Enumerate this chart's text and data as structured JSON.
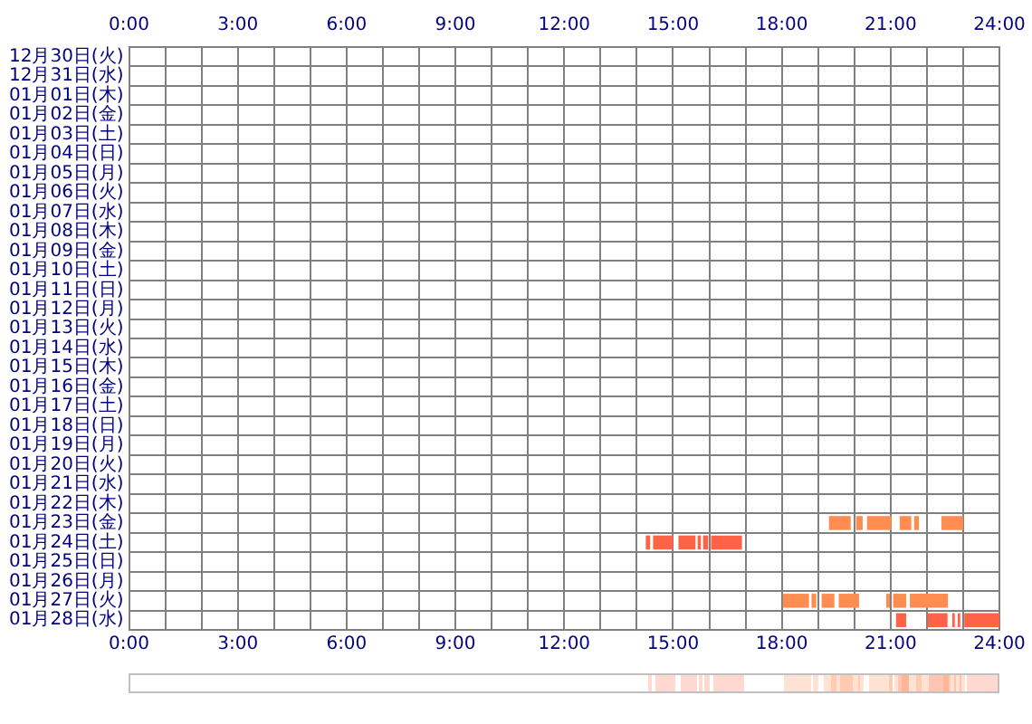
{
  "chart_data": {
    "type": "bar",
    "orientation": "horizontal",
    "grid": true,
    "legend": false,
    "categories": [
      "12月30日(火)",
      "12月31日(水)",
      "01月01日(木)",
      "01月02日(金)",
      "01月03日(土)",
      "01月04日(日)",
      "01月05日(月)",
      "01月06日(火)",
      "01月07日(水)",
      "01月08日(木)",
      "01月09日(金)",
      "01月10日(土)",
      "01月11日(日)",
      "01月12日(月)",
      "01月13日(火)",
      "01月14日(水)",
      "01月15日(木)",
      "01月16日(金)",
      "01月17日(土)",
      "01月18日(日)",
      "01月19日(月)",
      "01月20日(火)",
      "01月21日(水)",
      "01月22日(木)",
      "01月23日(金)",
      "01月24日(土)",
      "01月25日(日)",
      "01月26日(月)",
      "01月27日(火)",
      "01月28日(水)"
    ],
    "xlim": [
      0,
      24
    ],
    "xticks": [
      {
        "value": 0,
        "label": "0:00"
      },
      {
        "value": 1,
        "label": null
      },
      {
        "value": 2,
        "label": null
      },
      {
        "value": 3,
        "label": "3:00"
      },
      {
        "value": 4,
        "label": null
      },
      {
        "value": 5,
        "label": null
      },
      {
        "value": 6,
        "label": "6:00"
      },
      {
        "value": 7,
        "label": null
      },
      {
        "value": 8,
        "label": null
      },
      {
        "value": 9,
        "label": "9:00"
      },
      {
        "value": 10,
        "label": null
      },
      {
        "value": 11,
        "label": null
      },
      {
        "value": 12,
        "label": "12:00"
      },
      {
        "value": 13,
        "label": null
      },
      {
        "value": 14,
        "label": null
      },
      {
        "value": 15,
        "label": "15:00"
      },
      {
        "value": 16,
        "label": null
      },
      {
        "value": 17,
        "label": null
      },
      {
        "value": 18,
        "label": "18:00"
      },
      {
        "value": 19,
        "label": null
      },
      {
        "value": 20,
        "label": null
      },
      {
        "value": 21,
        "label": "21:00"
      },
      {
        "value": 22,
        "label": null
      },
      {
        "value": 23,
        "label": null
      },
      {
        "value": 24,
        "label": "24:00"
      }
    ],
    "x2lim": [
      0,
      24
    ],
    "x2ticks": [
      {
        "value": 0,
        "label": "0:00"
      },
      {
        "value": 3,
        "label": "3:00"
      },
      {
        "value": 6,
        "label": "6:00"
      },
      {
        "value": 9,
        "label": "9:00"
      },
      {
        "value": 12,
        "label": "12:00"
      },
      {
        "value": 15,
        "label": "15:00"
      },
      {
        "value": 18,
        "label": "18:00"
      },
      {
        "value": 21,
        "label": "21:00"
      },
      {
        "value": 24,
        "label": "24:00"
      }
    ],
    "series": [
      {
        "base": [
          null,
          null,
          null,
          null,
          null,
          null,
          null,
          null,
          null,
          null,
          null,
          null,
          null,
          null,
          null,
          null,
          null,
          null,
          null,
          null,
          null,
          null,
          null,
          null,
          19.3,
          14.25,
          null,
          null,
          18.03,
          21.15
        ],
        "values": [
          null,
          null,
          null,
          null,
          null,
          null,
          null,
          null,
          null,
          null,
          null,
          null,
          null,
          null,
          null,
          null,
          null,
          null,
          null,
          null,
          null,
          null,
          null,
          null,
          0.6,
          0.12,
          null,
          null,
          0.72,
          0.28
        ],
        "colors": [
          null,
          null,
          null,
          null,
          null,
          null,
          null,
          null,
          null,
          null,
          null,
          null,
          null,
          null,
          null,
          null,
          null,
          null,
          null,
          null,
          null,
          null,
          null,
          null,
          "#ff8c50",
          "#ff6347",
          null,
          null,
          "#ff8c50",
          "#ff6347"
        ]
      },
      {
        "base": [
          null,
          null,
          null,
          null,
          null,
          null,
          null,
          null,
          null,
          null,
          null,
          null,
          null,
          null,
          null,
          null,
          null,
          null,
          null,
          null,
          null,
          null,
          null,
          null,
          20.05,
          14.45,
          null,
          null,
          18.82,
          22.02
        ],
        "values": [
          null,
          null,
          null,
          null,
          null,
          null,
          null,
          null,
          null,
          null,
          null,
          null,
          null,
          null,
          null,
          null,
          null,
          null,
          null,
          null,
          null,
          null,
          null,
          null,
          0.18,
          0.55,
          null,
          null,
          0.13,
          0.55
        ],
        "colors": [
          null,
          null,
          null,
          null,
          null,
          null,
          null,
          null,
          null,
          null,
          null,
          null,
          null,
          null,
          null,
          null,
          null,
          null,
          null,
          null,
          null,
          null,
          null,
          null,
          "#ff8c50",
          "#ff6347",
          null,
          null,
          "#ff8c50",
          "#ff6347"
        ]
      },
      {
        "base": [
          null,
          null,
          null,
          null,
          null,
          null,
          null,
          null,
          null,
          null,
          null,
          null,
          null,
          null,
          null,
          null,
          null,
          null,
          null,
          null,
          null,
          null,
          null,
          null,
          20.35,
          15.15,
          null,
          null,
          19.1,
          22.7
        ],
        "values": [
          null,
          null,
          null,
          null,
          null,
          null,
          null,
          null,
          null,
          null,
          null,
          null,
          null,
          null,
          null,
          null,
          null,
          null,
          null,
          null,
          null,
          null,
          null,
          null,
          0.67,
          0.47,
          null,
          null,
          0.35,
          0.07
        ],
        "colors": [
          null,
          null,
          null,
          null,
          null,
          null,
          null,
          null,
          null,
          null,
          null,
          null,
          null,
          null,
          null,
          null,
          null,
          null,
          null,
          null,
          null,
          null,
          null,
          null,
          "#ff8c50",
          "#ff6347",
          null,
          null,
          "#ff8c50",
          "#ff6347"
        ]
      },
      {
        "base": [
          null,
          null,
          null,
          null,
          null,
          null,
          null,
          null,
          null,
          null,
          null,
          null,
          null,
          null,
          null,
          null,
          null,
          null,
          null,
          null,
          null,
          null,
          null,
          null,
          21.25,
          15.68,
          null,
          null,
          19.57,
          22.85
        ],
        "values": [
          null,
          null,
          null,
          null,
          null,
          null,
          null,
          null,
          null,
          null,
          null,
          null,
          null,
          null,
          null,
          null,
          null,
          null,
          null,
          null,
          null,
          null,
          null,
          null,
          0.32,
          0.09,
          null,
          null,
          0.56,
          0.07
        ],
        "colors": [
          null,
          null,
          null,
          null,
          null,
          null,
          null,
          null,
          null,
          null,
          null,
          null,
          null,
          null,
          null,
          null,
          null,
          null,
          null,
          null,
          null,
          null,
          null,
          null,
          "#ff8c50",
          "#ff6347",
          null,
          null,
          "#ff8c50",
          "#ff6347"
        ]
      },
      {
        "base": [
          null,
          null,
          null,
          null,
          null,
          null,
          null,
          null,
          null,
          null,
          null,
          null,
          null,
          null,
          null,
          null,
          null,
          null,
          null,
          null,
          null,
          null,
          null,
          null,
          21.65,
          15.83,
          null,
          null,
          20.88,
          23.03
        ],
        "values": [
          null,
          null,
          null,
          null,
          null,
          null,
          null,
          null,
          null,
          null,
          null,
          null,
          null,
          null,
          null,
          null,
          null,
          null,
          null,
          null,
          null,
          null,
          null,
          null,
          0.13,
          0.14,
          null,
          null,
          0.1,
          0.97
        ],
        "colors": [
          null,
          null,
          null,
          null,
          null,
          null,
          null,
          null,
          null,
          null,
          null,
          null,
          null,
          null,
          null,
          null,
          null,
          null,
          null,
          null,
          null,
          null,
          null,
          null,
          "#ff8c50",
          "#ff6347",
          null,
          null,
          "#ff8c50",
          "#ff6347"
        ]
      },
      {
        "base": [
          null,
          null,
          null,
          null,
          null,
          null,
          null,
          null,
          null,
          null,
          null,
          null,
          null,
          null,
          null,
          null,
          null,
          null,
          null,
          null,
          null,
          null,
          null,
          null,
          22.4,
          16.05,
          null,
          null,
          21.07,
          null
        ],
        "values": [
          null,
          null,
          null,
          null,
          null,
          null,
          null,
          null,
          null,
          null,
          null,
          null,
          null,
          null,
          null,
          null,
          null,
          null,
          null,
          null,
          null,
          null,
          null,
          null,
          0.6,
          0.85,
          null,
          null,
          0.36,
          null
        ],
        "colors": [
          null,
          null,
          null,
          null,
          null,
          null,
          null,
          null,
          null,
          null,
          null,
          null,
          null,
          null,
          null,
          null,
          null,
          null,
          null,
          null,
          null,
          null,
          null,
          null,
          "#ff8c50",
          "#ff6347",
          null,
          null,
          "#ff8c50",
          null
        ]
      },
      {
        "base": [
          null,
          null,
          null,
          null,
          null,
          null,
          null,
          null,
          null,
          null,
          null,
          null,
          null,
          null,
          null,
          null,
          null,
          null,
          null,
          null,
          null,
          null,
          null,
          null,
          null,
          null,
          null,
          null,
          21.53,
          null
        ],
        "values": [
          null,
          null,
          null,
          null,
          null,
          null,
          null,
          null,
          null,
          null,
          null,
          null,
          null,
          null,
          null,
          null,
          null,
          null,
          null,
          null,
          null,
          null,
          null,
          null,
          null,
          null,
          null,
          null,
          1.05,
          null
        ],
        "colors": [
          null,
          null,
          null,
          null,
          null,
          null,
          null,
          null,
          null,
          null,
          null,
          null,
          null,
          null,
          null,
          null,
          null,
          null,
          null,
          null,
          null,
          null,
          null,
          null,
          null,
          null,
          null,
          null,
          "#ff8c50",
          null
        ]
      }
    ]
  }
}
